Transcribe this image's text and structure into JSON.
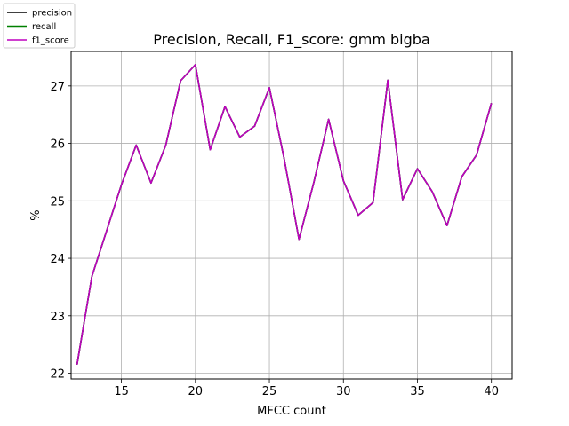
{
  "chart_data": {
    "type": "line",
    "title": "Precision, Recall, F1_score: gmm bigba",
    "xlabel": "MFCC count",
    "ylabel": "%",
    "xlim": [
      11.6,
      41.4
    ],
    "ylim": [
      21.9,
      27.6
    ],
    "xticks": [
      15,
      20,
      25,
      30,
      35,
      40
    ],
    "yticks": [
      22,
      23,
      24,
      25,
      26,
      27
    ],
    "grid": true,
    "legend_position": "top-left, outside axes",
    "x": [
      12,
      13,
      14,
      15,
      16,
      17,
      18,
      19,
      20,
      21,
      22,
      23,
      24,
      25,
      26,
      27,
      28,
      29,
      30,
      31,
      32,
      33,
      34,
      35,
      36,
      37,
      38,
      39,
      40
    ],
    "series": [
      {
        "name": "precision",
        "color": "#000000",
        "values": [
          22.15,
          23.68,
          24.48,
          25.28,
          25.97,
          25.31,
          25.97,
          27.09,
          27.37,
          25.89,
          26.64,
          26.11,
          26.3,
          26.97,
          25.73,
          24.33,
          25.32,
          26.42,
          25.35,
          24.75,
          24.97,
          27.1,
          25.02,
          25.56,
          25.16,
          24.57,
          25.42,
          25.8,
          26.7
        ]
      },
      {
        "name": "recall",
        "color": "#008000",
        "values": [
          22.15,
          23.68,
          24.48,
          25.28,
          25.97,
          25.31,
          25.97,
          27.09,
          27.37,
          25.89,
          26.64,
          26.11,
          26.3,
          26.97,
          25.73,
          24.33,
          25.32,
          26.42,
          25.35,
          24.75,
          24.97,
          27.1,
          25.02,
          25.56,
          25.16,
          24.57,
          25.42,
          25.8,
          26.7
        ]
      },
      {
        "name": "f1_score",
        "color": "#bf00bf",
        "values": [
          22.15,
          23.68,
          24.48,
          25.28,
          25.97,
          25.31,
          25.97,
          27.09,
          27.37,
          25.89,
          26.64,
          26.11,
          26.3,
          26.97,
          25.73,
          24.33,
          25.32,
          26.42,
          25.35,
          24.75,
          24.97,
          27.1,
          25.02,
          25.56,
          25.16,
          24.57,
          25.42,
          25.8,
          26.7
        ]
      }
    ]
  }
}
